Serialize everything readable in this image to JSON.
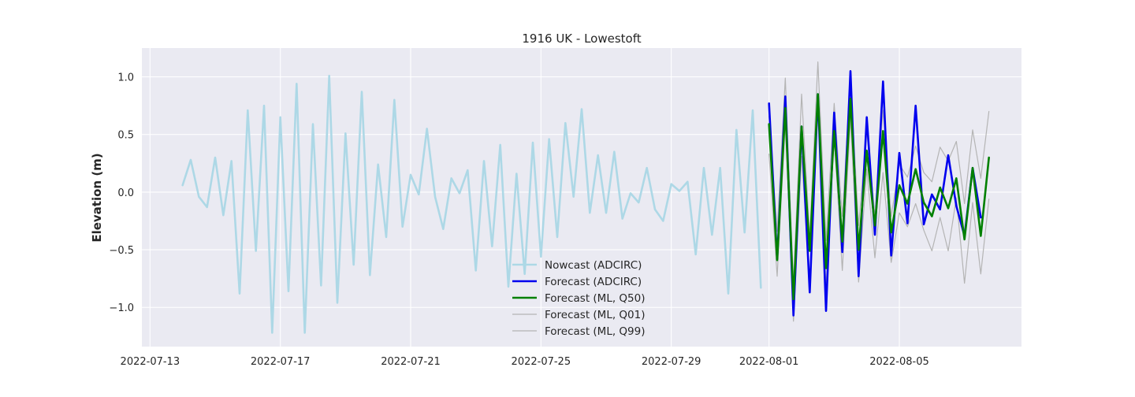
{
  "chart_data": {
    "type": "line",
    "title": "1916 UK - Lowestoft",
    "xlabel": "",
    "ylabel": "Elevation (m)",
    "x_axis": "date",
    "xlim": [
      "2022-07-12T18:00",
      "2022-08-08T18:00"
    ],
    "ylim": [
      -1.34,
      1.25
    ],
    "x_ticks": [
      "2022-07-13",
      "2022-07-17",
      "2022-07-21",
      "2022-07-25",
      "2022-07-29",
      "2022-08-01",
      "2022-08-05"
    ],
    "y_ticks": [
      -1.0,
      -0.5,
      0.0,
      0.5,
      1.0
    ],
    "y_tick_labels": [
      "−1.0",
      "−0.5",
      "0.0",
      "0.5",
      "1.0"
    ],
    "grid": true,
    "background": "#eaeaf2",
    "legend_position": "lower center",
    "series": [
      {
        "name": "Nowcast (ADCIRC)",
        "color": "#add8e6",
        "x_start": "2022-07-14T00:00",
        "x_step_hours": 6,
        "values": [
          0.06,
          0.28,
          -0.04,
          -0.13,
          0.3,
          -0.2,
          0.27,
          -0.88,
          0.71,
          -0.51,
          0.75,
          -1.22,
          0.65,
          -0.86,
          0.94,
          -1.22,
          0.59,
          -0.81,
          1.01,
          -0.96,
          0.51,
          -0.63,
          0.87,
          -0.72,
          0.24,
          -0.39,
          0.8,
          -0.3,
          0.15,
          -0.02,
          0.55,
          -0.04,
          -0.32,
          0.12,
          -0.01,
          0.19,
          -0.68,
          0.27,
          -0.47,
          0.41,
          -0.82,
          0.16,
          -0.71,
          0.43,
          -0.56,
          0.46,
          -0.39,
          0.6,
          -0.04,
          0.72,
          -0.18,
          0.32,
          -0.18,
          0.35,
          -0.23,
          -0.01,
          -0.09,
          0.21,
          -0.15,
          -0.25,
          0.07,
          0.01,
          0.09,
          -0.54,
          0.21,
          -0.37,
          0.21,
          -0.88,
          0.54,
          -0.35,
          0.71,
          -0.83
        ]
      },
      {
        "name": "Forecast (ADCIRC)",
        "color": "#0000ee",
        "x_start": "2022-08-01T00:00",
        "x_step_hours": 6,
        "values": [
          0.77,
          -0.58,
          0.83,
          -1.07,
          0.57,
          -0.87,
          0.85,
          -1.03,
          0.69,
          -0.52,
          1.05,
          -0.73,
          0.65,
          -0.37,
          0.96,
          -0.55,
          0.34,
          -0.27,
          0.75,
          -0.28,
          -0.02,
          -0.15,
          0.32,
          -0.12,
          -0.38,
          0.21,
          -0.22
        ]
      },
      {
        "name": "Forecast (ML, Q50)",
        "color": "#008000",
        "x_start": "2022-08-01T00:00",
        "x_step_hours": 6,
        "values": [
          0.59,
          -0.59,
          0.73,
          -0.93,
          0.57,
          -0.51,
          0.85,
          -0.66,
          0.53,
          -0.43,
          0.81,
          -0.5,
          0.36,
          -0.29,
          0.53,
          -0.35,
          0.06,
          -0.1,
          0.2,
          -0.09,
          -0.21,
          0.04,
          -0.14,
          0.12,
          -0.41,
          0.21,
          -0.38,
          0.3
        ]
      },
      {
        "name": "Forecast (ML, Q01)",
        "color": "#b4b4b4",
        "x_start": "2022-08-01T00:00",
        "x_step_hours": 6,
        "values": [
          0.33,
          -0.73,
          0.61,
          -1.12,
          0.31,
          -0.78,
          0.74,
          -0.82,
          0.49,
          -0.68,
          0.64,
          -0.78,
          0.2,
          -0.57,
          0.17,
          -0.61,
          -0.18,
          -0.3,
          -0.1,
          -0.33,
          -0.51,
          -0.22,
          -0.51,
          -0.05,
          -0.79,
          -0.09,
          -0.71,
          -0.06
        ]
      },
      {
        "name": "Forecast (ML, Q99)",
        "color": "#b4b4b4",
        "x_start": "2022-08-01T00:00",
        "x_step_hours": 6,
        "values": [
          0.66,
          -0.34,
          0.99,
          -0.79,
          0.85,
          -0.39,
          1.13,
          -0.42,
          0.77,
          -0.21,
          0.98,
          -0.29,
          0.53,
          -0.2,
          0.71,
          -0.21,
          0.24,
          0.13,
          0.4,
          0.17,
          0.09,
          0.39,
          0.27,
          0.44,
          -0.1,
          0.54,
          0.12,
          0.7
        ]
      }
    ]
  }
}
